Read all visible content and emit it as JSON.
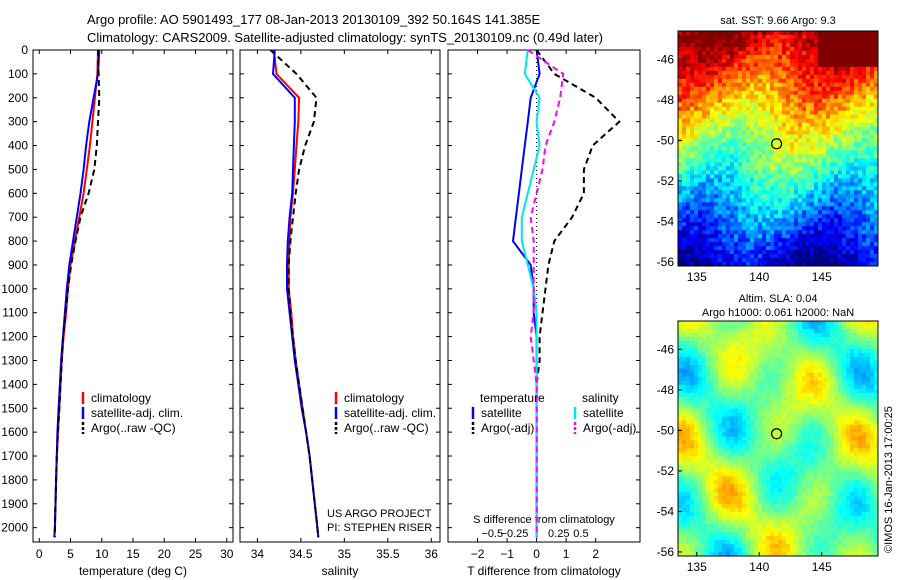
{
  "header": {
    "line1": "Argo profile: AO 5901493_177 08-Jan-2013 20130109_392 50.164S 141.385E",
    "line2": "Climatology: CARS2009. Satellite-adjusted climatology: synTS_20130109.nc (0.49d later)"
  },
  "colors": {
    "clim": "#ff0000",
    "sat": "#0000ff",
    "argo": "#000000",
    "sal_sat": "#00e5ee",
    "sal_argo": "#ff00ff"
  },
  "chart_data": [
    {
      "type": "line",
      "xlabel": "temperature (deg C)",
      "ylabel": "",
      "xlim": [
        -1,
        31
      ],
      "ylim": [
        2060,
        0
      ],
      "xticks": [
        0,
        5,
        10,
        15,
        20,
        25,
        30
      ],
      "xtick_labels": [
        "0",
        "5",
        "10",
        "15",
        "20",
        "25",
        "30"
      ],
      "yticks": [
        0,
        100,
        200,
        300,
        400,
        500,
        600,
        700,
        800,
        900,
        1000,
        1100,
        1200,
        1300,
        1400,
        1500,
        1600,
        1700,
        1800,
        1900,
        2000
      ],
      "ytick_labels": [
        "0",
        "100",
        "200",
        "300",
        "400",
        "500",
        "600",
        "700",
        "800",
        "900",
        "1000",
        "1100",
        "1200",
        "1300",
        "1400",
        "1500",
        "1600",
        "1700",
        "1800",
        "1900",
        "2000"
      ],
      "legend": [
        "climatology",
        "satellite-adj. clim.",
        "Argo(..raw -QC)"
      ],
      "legend_position": "lower-right",
      "series": [
        {
          "name": "climatology",
          "color": "#ff0000",
          "dash": "",
          "x": [
            9.4,
            9.3,
            8.9,
            8.5,
            8.1,
            7.6,
            7.1,
            6.4,
            5.7,
            5.0,
            4.6,
            4.3,
            3.9,
            3.6,
            3.4,
            3.2,
            3.0,
            2.8,
            2.7,
            2.6,
            2.5,
            2.4
          ],
          "y": [
            0,
            100,
            200,
            300,
            400,
            500,
            600,
            700,
            800,
            900,
            1000,
            1100,
            1200,
            1300,
            1400,
            1500,
            1600,
            1700,
            1800,
            1900,
            2000,
            2040
          ]
        },
        {
          "name": "satellite-adj. clim.",
          "color": "#0000ff",
          "dash": "",
          "x": [
            9.6,
            9.4,
            8.7,
            8.0,
            7.5,
            7.1,
            6.6,
            6.0,
            5.4,
            4.8,
            4.4,
            4.1,
            3.8,
            3.5,
            3.3,
            3.1,
            2.9,
            2.8,
            2.7,
            2.6,
            2.5,
            2.4
          ],
          "y": [
            0,
            100,
            200,
            300,
            400,
            500,
            600,
            700,
            800,
            900,
            1000,
            1100,
            1200,
            1300,
            1400,
            1500,
            1600,
            1700,
            1800,
            1900,
            2000,
            2040
          ]
        },
        {
          "name": "Argo(..raw -QC)",
          "color": "#000000",
          "dash": "6,4",
          "x": [
            9.4,
            9.5,
            9.6,
            9.4,
            9.2,
            8.8,
            7.9,
            6.6,
            5.8,
            5.1,
            4.6,
            4.2,
            3.8,
            3.6,
            3.4,
            3.2,
            3.0,
            2.8,
            2.7,
            2.6,
            2.5,
            2.5
          ],
          "y": [
            0,
            100,
            200,
            300,
            400,
            500,
            600,
            700,
            800,
            900,
            1000,
            1100,
            1200,
            1300,
            1400,
            1500,
            1600,
            1700,
            1800,
            1900,
            2000,
            2040
          ]
        }
      ]
    },
    {
      "type": "line",
      "xlabel": "salinity",
      "xlim": [
        33.8,
        36.1
      ],
      "ylim": [
        2060,
        0
      ],
      "xticks": [
        34,
        34.5,
        35,
        35.5,
        36
      ],
      "xtick_labels": [
        "34",
        "34.5",
        "35",
        "35.5",
        "36"
      ],
      "legend": [
        "climatology",
        "satellite-adj. clim.",
        "Argo(..raw -QC)"
      ],
      "legend_position": "lower-right",
      "annotations": [
        "US ARGO PROJECT",
        "PI: STEPHEN RISER"
      ],
      "series": [
        {
          "name": "climatology",
          "color": "#ff0000",
          "dash": "",
          "x": [
            34.19,
            34.22,
            34.48,
            34.47,
            34.45,
            34.43,
            34.41,
            34.38,
            34.37,
            34.36,
            34.36,
            34.39,
            34.41,
            34.44,
            34.48,
            34.52,
            34.56,
            34.6,
            34.63,
            34.66,
            34.69,
            34.7
          ],
          "y": [
            0,
            100,
            200,
            300,
            400,
            500,
            600,
            700,
            800,
            900,
            1000,
            1100,
            1200,
            1300,
            1400,
            1500,
            1600,
            1700,
            1800,
            1900,
            2000,
            2040
          ]
        },
        {
          "name": "satellite-adj. clim.",
          "color": "#0000ff",
          "dash": "",
          "x": [
            34.2,
            34.18,
            34.43,
            34.43,
            34.42,
            34.41,
            34.4,
            34.37,
            34.35,
            34.34,
            34.34,
            34.37,
            34.4,
            34.43,
            34.47,
            34.51,
            34.56,
            34.6,
            34.63,
            34.66,
            34.69,
            34.7
          ],
          "y": [
            0,
            100,
            200,
            300,
            400,
            500,
            600,
            700,
            800,
            900,
            1000,
            1100,
            1200,
            1300,
            1400,
            1500,
            1600,
            1700,
            1800,
            1900,
            2000,
            2040
          ]
        },
        {
          "name": "Argo(..raw -QC)",
          "color": "#000000",
          "dash": "6,4",
          "x": [
            34.15,
            34.45,
            34.68,
            34.65,
            34.55,
            34.48,
            34.44,
            34.41,
            34.38,
            34.36,
            34.36,
            34.38,
            34.41,
            34.44,
            34.48,
            34.52,
            34.56,
            34.6,
            34.63,
            34.66,
            34.69,
            34.7
          ],
          "y": [
            0,
            100,
            200,
            300,
            400,
            500,
            600,
            700,
            800,
            900,
            1000,
            1100,
            1200,
            1300,
            1400,
            1500,
            1600,
            1700,
            1800,
            1900,
            2000,
            2040
          ]
        }
      ]
    },
    {
      "type": "line",
      "xlabel": "T difference from climatology",
      "xlabel_top": "S difference from climatology",
      "xlim": [
        -3,
        3.5
      ],
      "ylim": [
        2060,
        0
      ],
      "xticks": [
        -2,
        -1,
        0,
        1,
        2
      ],
      "xtick_labels": [
        "−2",
        "−1",
        "0",
        "1",
        "2"
      ],
      "top_ticks": [
        -1.5,
        -0.75,
        0.75,
        1.5
      ],
      "top_tick_labels": [
        "−0.5",
        "−0.25",
        "0.25",
        "0.5"
      ],
      "legend": [
        "temperature",
        "satellite",
        "Argo(-adj)",
        "salinity",
        "satellite",
        "Argo(-adj)"
      ],
      "legend_position": "lower-right",
      "series": [
        {
          "name": "temperature satellite",
          "color": "#0000ff",
          "dash": "",
          "x": [
            0.0,
            0.1,
            -0.2,
            -0.3,
            -0.4,
            -0.5,
            -0.6,
            -0.7,
            -0.8,
            -0.2,
            -0.1,
            -0.1,
            0.0,
            0.0,
            0.0,
            0.0,
            0.0,
            0.0,
            0.0,
            0.0,
            0.0,
            0.0
          ],
          "y": [
            0,
            100,
            200,
            300,
            400,
            500,
            600,
            700,
            800,
            900,
            1000,
            1100,
            1200,
            1300,
            1400,
            1500,
            1600,
            1700,
            1800,
            1900,
            2000,
            2040
          ]
        },
        {
          "name": "temperature Argo(-adj)",
          "color": "#000000",
          "dash": "6,4",
          "x": [
            0.0,
            0.6,
            2.0,
            2.8,
            1.9,
            1.6,
            1.6,
            1.2,
            0.6,
            0.4,
            0.3,
            0.2,
            0.1,
            0.1,
            0.0,
            0.0,
            0.0,
            0.0,
            0.0,
            0.0,
            0.0,
            0.0
          ],
          "y": [
            0,
            100,
            200,
            300,
            400,
            500,
            600,
            700,
            800,
            900,
            1000,
            1100,
            1200,
            1300,
            1400,
            1500,
            1600,
            1700,
            1800,
            1900,
            2000,
            2040
          ]
        },
        {
          "name": "salinity satellite",
          "color": "#00e5ee",
          "dash": "",
          "x": [
            -0.3,
            -0.4,
            0.1,
            0.0,
            0.1,
            -0.1,
            -0.3,
            -0.5,
            -0.5,
            -0.3,
            -0.1,
            0.0,
            0.0,
            0.0,
            0.0,
            0.0,
            0.0,
            0.0,
            0.0,
            0.0,
            0.0,
            0.0
          ],
          "y": [
            0,
            100,
            200,
            300,
            400,
            500,
            600,
            700,
            800,
            900,
            1000,
            1100,
            1200,
            1300,
            1400,
            1500,
            1600,
            1700,
            1800,
            1900,
            2000,
            2040
          ]
        },
        {
          "name": "salinity Argo(-adj)",
          "color": "#ff00ff",
          "dash": "6,4",
          "x": [
            -0.3,
            0.9,
            0.8,
            0.6,
            0.3,
            0.2,
            0.0,
            -0.2,
            -0.1,
            -0.1,
            -0.1,
            -0.1,
            -0.2,
            -0.1,
            0.0,
            0.0,
            0.0,
            0.0,
            0.0,
            0.0,
            0.0,
            0.0
          ],
          "y": [
            0,
            100,
            200,
            300,
            400,
            500,
            600,
            700,
            800,
            900,
            1000,
            1100,
            1200,
            1300,
            1400,
            1500,
            1600,
            1700,
            1800,
            1900,
            2000,
            2040
          ]
        }
      ]
    },
    {
      "type": "heatmap",
      "title": "sat. SST: 9.66  Argo: 9.3",
      "xlim": [
        133.5,
        149.5
      ],
      "ylim": [
        -56.2,
        -44.6
      ],
      "xticks": [
        135,
        140,
        145
      ],
      "xtick_labels": [
        "135",
        "140",
        "145"
      ],
      "yticks": [
        -46,
        -48,
        -50,
        -52,
        -54,
        -56
      ],
      "ytick_labels": [
        "-46",
        "-48",
        "-50",
        "-52",
        "-54",
        "-56"
      ],
      "marker": {
        "lon": 141.385,
        "lat": -50.164
      }
    },
    {
      "type": "heatmap",
      "title": "Altim. SLA: 0.04",
      "subtitle": "Argo h1000: 0.061  h2000: NaN",
      "xlim": [
        133.5,
        149.5
      ],
      "ylim": [
        -56.2,
        -44.6
      ],
      "xticks": [
        135,
        140,
        145
      ],
      "xtick_labels": [
        "135",
        "140",
        "145"
      ],
      "yticks": [
        -46,
        -48,
        -50,
        -52,
        -54,
        -56
      ],
      "ytick_labels": [
        "-46",
        "-48",
        "-50",
        "-52",
        "-54",
        "-56"
      ],
      "marker": {
        "lon": 141.385,
        "lat": -50.164
      },
      "side_label": "©IMOS 16-Jan-2013 17:00:25"
    }
  ]
}
